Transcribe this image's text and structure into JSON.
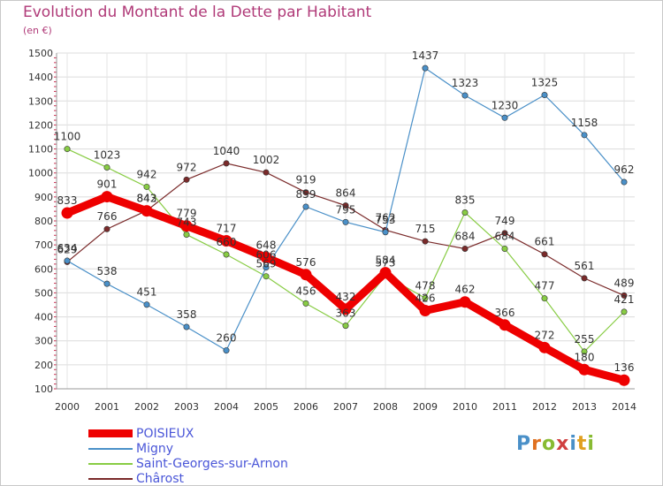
{
  "title": "Evolution du Montant de la Dette par Habitant",
  "unit": "(en €)",
  "logo": {
    "text": "Proxiti"
  },
  "chart_data": {
    "type": "line",
    "title": "Evolution du Montant de la Dette par Habitant",
    "ylabel": "(en €)",
    "xlabel": "",
    "ylim": [
      100,
      1500
    ],
    "yticks": [
      100,
      200,
      300,
      400,
      500,
      600,
      700,
      800,
      900,
      1000,
      1100,
      1200,
      1300,
      1400,
      1500
    ],
    "grid": true,
    "legend_position": "bottom-left",
    "x": [
      "2000",
      "2001",
      "2002",
      "2003",
      "2004",
      "2005",
      "2006",
      "2007",
      "2008",
      "2009",
      "2010",
      "2011",
      "2012",
      "2013",
      "2014"
    ],
    "series": [
      {
        "name": "POISIEUX",
        "color": "#ee0000",
        "values": [
          833,
          901,
          842,
          779,
          717,
          648,
          576,
          432,
          584,
          426,
          462,
          366,
          272,
          180,
          136
        ]
      },
      {
        "name": "Migny",
        "color": "#4a90c8",
        "values": [
          634,
          538,
          451,
          358,
          260,
          606,
          859,
          795,
          753,
          1437,
          1323,
          1230,
          1325,
          1158,
          962
        ]
      },
      {
        "name": "Saint-Georges-sur-Arnon",
        "color": "#88cc44",
        "values": [
          1100,
          1023,
          942,
          743,
          660,
          569,
          456,
          363,
          573,
          478,
          835,
          684,
          477,
          255,
          421
        ]
      },
      {
        "name": "Chârost",
        "color": "#7a2a2a",
        "values": [
          629,
          766,
          843,
          972,
          1040,
          1002,
          919,
          864,
          762,
          715,
          684,
          749,
          661,
          561,
          489
        ]
      }
    ]
  }
}
